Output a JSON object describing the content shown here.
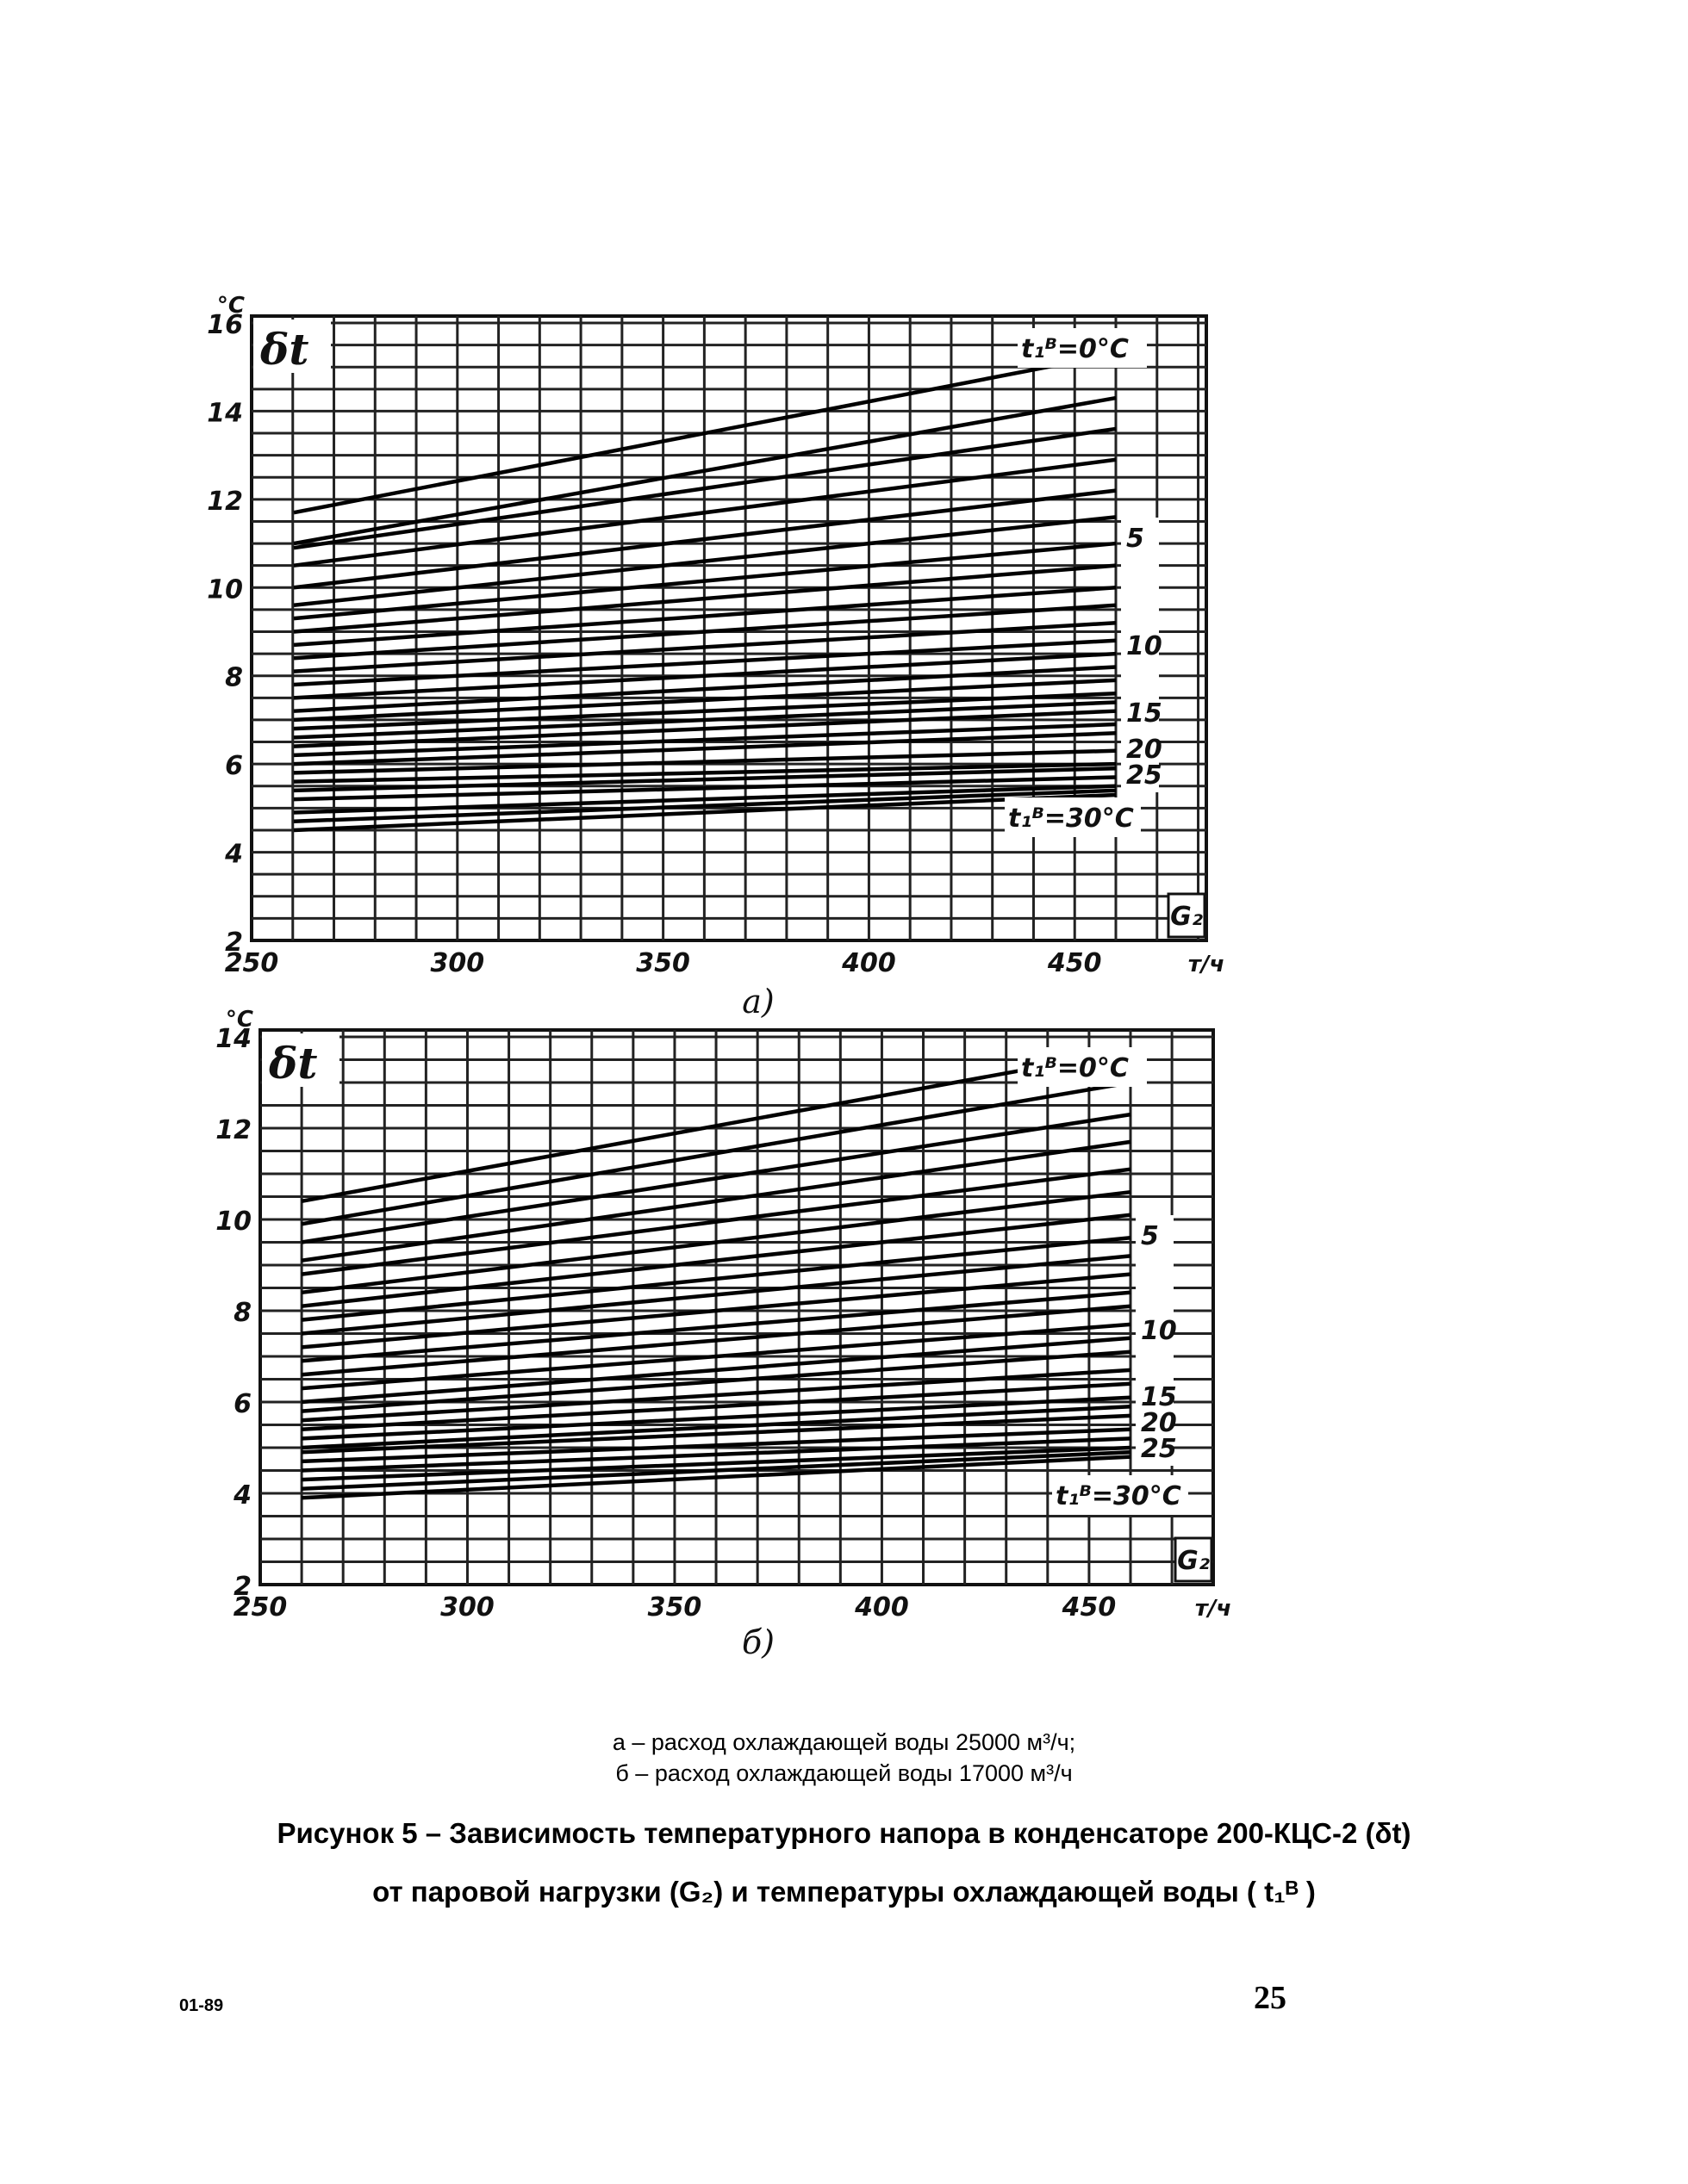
{
  "chart_data": [
    {
      "type": "line",
      "panel": "а)",
      "ylabel": "δt",
      "yunit": "°C",
      "xlabel": "G₂",
      "xunit": "т/ч",
      "xlim": [
        250,
        460
      ],
      "ylim": [
        2,
        16
      ],
      "xticks": [
        250,
        300,
        350,
        400,
        450
      ],
      "yticks": [
        2,
        4,
        6,
        8,
        10,
        12,
        14,
        16
      ],
      "grid": true,
      "series_param": "t₁ᴮ, °C",
      "top_label": "t₁ᴮ=0°C",
      "bottom_label": "t₁ᴮ=30°C",
      "right_labels": [
        "5",
        "10",
        "15",
        "20",
        "25"
      ],
      "series": [
        {
          "x": [
            260,
            460
          ],
          "y": [
            11.7,
            15.3
          ]
        },
        {
          "x": [
            260,
            460
          ],
          "y": [
            11.0,
            14.3
          ]
        },
        {
          "x": [
            260,
            460
          ],
          "y": [
            10.9,
            13.6
          ]
        },
        {
          "x": [
            260,
            460
          ],
          "y": [
            10.5,
            12.9
          ]
        },
        {
          "x": [
            260,
            460
          ],
          "y": [
            10.0,
            12.2
          ]
        },
        {
          "x": [
            260,
            460
          ],
          "y": [
            9.6,
            11.6
          ]
        },
        {
          "x": [
            260,
            460
          ],
          "y": [
            9.3,
            11.0
          ]
        },
        {
          "x": [
            260,
            460
          ],
          "y": [
            9.0,
            10.5
          ]
        },
        {
          "x": [
            260,
            460
          ],
          "y": [
            8.7,
            10.0
          ]
        },
        {
          "x": [
            260,
            460
          ],
          "y": [
            8.4,
            9.6
          ]
        },
        {
          "x": [
            260,
            460
          ],
          "y": [
            8.1,
            9.2
          ]
        },
        {
          "x": [
            260,
            460
          ],
          "y": [
            7.8,
            8.8
          ]
        },
        {
          "x": [
            260,
            460
          ],
          "y": [
            7.5,
            8.5
          ]
        },
        {
          "x": [
            260,
            460
          ],
          "y": [
            7.2,
            8.2
          ]
        },
        {
          "x": [
            260,
            460
          ],
          "y": [
            7.0,
            7.9
          ]
        },
        {
          "x": [
            260,
            460
          ],
          "y": [
            6.8,
            7.6
          ]
        },
        {
          "x": [
            260,
            460
          ],
          "y": [
            6.6,
            7.4
          ]
        },
        {
          "x": [
            260,
            460
          ],
          "y": [
            6.4,
            7.2
          ]
        },
        {
          "x": [
            260,
            460
          ],
          "y": [
            6.2,
            6.9
          ]
        },
        {
          "x": [
            260,
            460
          ],
          "y": [
            6.0,
            6.7
          ]
        },
        {
          "x": [
            260,
            460
          ],
          "y": [
            5.8,
            6.3
          ]
        },
        {
          "x": [
            260,
            460
          ],
          "y": [
            5.6,
            6.0
          ]
        },
        {
          "x": [
            260,
            460
          ],
          "y": [
            5.4,
            5.9
          ]
        },
        {
          "x": [
            260,
            460
          ],
          "y": [
            5.2,
            5.7
          ]
        },
        {
          "x": [
            260,
            460
          ],
          "y": [
            4.9,
            5.5
          ]
        },
        {
          "x": [
            260,
            460
          ],
          "y": [
            4.7,
            5.4
          ]
        },
        {
          "x": [
            260,
            460
          ],
          "y": [
            4.5,
            5.3
          ]
        }
      ]
    },
    {
      "type": "line",
      "panel": "б)",
      "ylabel": "δt",
      "yunit": "°C",
      "xlabel": "G₂",
      "xunit": "т/ч",
      "xlim": [
        250,
        460
      ],
      "ylim": [
        2,
        14
      ],
      "xticks": [
        250,
        300,
        350,
        400,
        450
      ],
      "yticks": [
        2,
        4,
        6,
        8,
        10,
        12,
        14
      ],
      "grid": true,
      "series_param": "t₁ᴮ, °C",
      "top_label": "t₁ᴮ=0°C",
      "bottom_label": "t₁ᴮ=30°C",
      "right_labels": [
        "5",
        "10",
        "15",
        "20",
        "25"
      ],
      "series": [
        {
          "x": [
            260,
            460
          ],
          "y": [
            10.4,
            13.7
          ]
        },
        {
          "x": [
            260,
            460
          ],
          "y": [
            9.9,
            13.0
          ]
        },
        {
          "x": [
            260,
            460
          ],
          "y": [
            9.5,
            12.3
          ]
        },
        {
          "x": [
            260,
            460
          ],
          "y": [
            9.1,
            11.7
          ]
        },
        {
          "x": [
            260,
            460
          ],
          "y": [
            8.8,
            11.1
          ]
        },
        {
          "x": [
            260,
            460
          ],
          "y": [
            8.4,
            10.6
          ]
        },
        {
          "x": [
            260,
            460
          ],
          "y": [
            8.1,
            10.1
          ]
        },
        {
          "x": [
            260,
            460
          ],
          "y": [
            7.8,
            9.6
          ]
        },
        {
          "x": [
            260,
            460
          ],
          "y": [
            7.5,
            9.2
          ]
        },
        {
          "x": [
            260,
            460
          ],
          "y": [
            7.2,
            8.8
          ]
        },
        {
          "x": [
            260,
            460
          ],
          "y": [
            6.9,
            8.4
          ]
        },
        {
          "x": [
            260,
            460
          ],
          "y": [
            6.6,
            8.1
          ]
        },
        {
          "x": [
            260,
            460
          ],
          "y": [
            6.3,
            7.7
          ]
        },
        {
          "x": [
            260,
            460
          ],
          "y": [
            6.0,
            7.4
          ]
        },
        {
          "x": [
            260,
            460
          ],
          "y": [
            5.8,
            7.1
          ]
        },
        {
          "x": [
            260,
            460
          ],
          "y": [
            5.6,
            6.7
          ]
        },
        {
          "x": [
            260,
            460
          ],
          "y": [
            5.4,
            6.4
          ]
        },
        {
          "x": [
            260,
            460
          ],
          "y": [
            5.2,
            6.1
          ]
        },
        {
          "x": [
            260,
            460
          ],
          "y": [
            5.0,
            5.9
          ]
        },
        {
          "x": [
            260,
            460
          ],
          "y": [
            4.9,
            5.7
          ]
        },
        {
          "x": [
            260,
            460
          ],
          "y": [
            4.7,
            5.4
          ]
        },
        {
          "x": [
            260,
            460
          ],
          "y": [
            4.5,
            5.2
          ]
        },
        {
          "x": [
            260,
            460
          ],
          "y": [
            4.3,
            5.0
          ]
        },
        {
          "x": [
            260,
            460
          ],
          "y": [
            4.1,
            4.9
          ]
        },
        {
          "x": [
            260,
            460
          ],
          "y": [
            3.9,
            4.8
          ]
        }
      ]
    }
  ],
  "legend_lines": [
    "а – расход охлаждающей воды 25000 м³/ч;",
    "б – расход охлаждающей воды 17000 м³/ч"
  ],
  "caption": {
    "line1": "Рисунок 5 – Зависимость температурного напора в конденсаторе 200-КЦС-2 (δt)",
    "line2": "от паровой нагрузки (G₂) и температуры охлаждающей воды ( t₁ᴮ )"
  },
  "footer": {
    "code": "01-89",
    "page_number": "25"
  }
}
